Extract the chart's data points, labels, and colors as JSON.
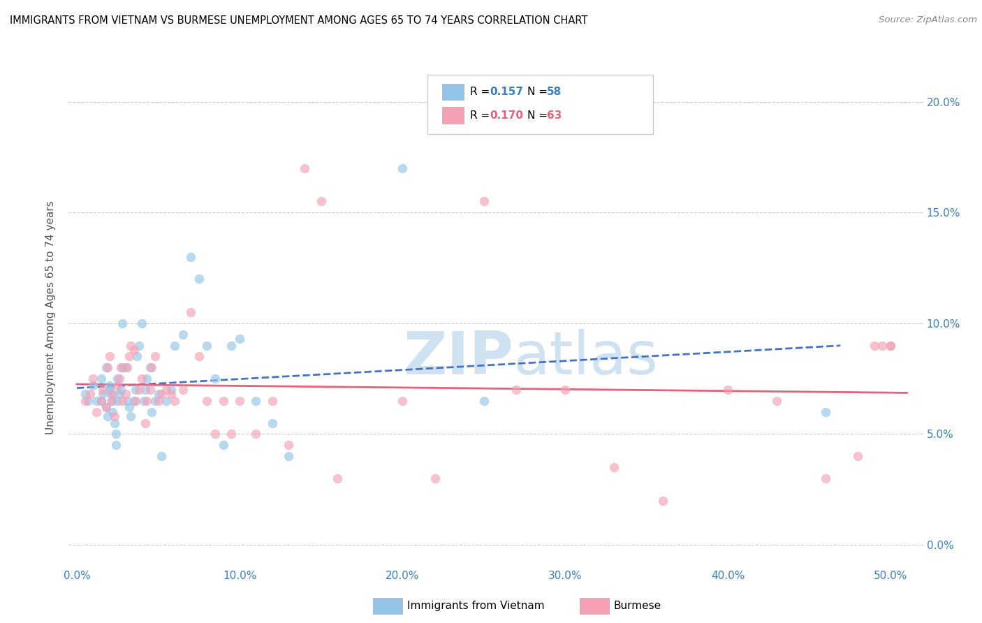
{
  "title": "IMMIGRANTS FROM VIETNAM VS BURMESE UNEMPLOYMENT AMONG AGES 65 TO 74 YEARS CORRELATION CHART",
  "source": "Source: ZipAtlas.com",
  "xlabel_vals": [
    0.0,
    0.1,
    0.2,
    0.3,
    0.4,
    0.5
  ],
  "ylabel_vals": [
    0.0,
    0.05,
    0.1,
    0.15,
    0.2
  ],
  "ylabel_label": "Unemployment Among Ages 65 to 74 years",
  "xlim": [
    -0.005,
    0.52
  ],
  "ylim": [
    -0.01,
    0.215
  ],
  "color_vietnam": "#92C5E8",
  "color_burmese": "#F5A0B5",
  "trendline_vietnam_color": "#4472C4",
  "trendline_burmese_color": "#E8607A",
  "watermark_zip": "ZIP",
  "watermark_atlas": "atlas",
  "watermark_color": "#D5E8F5",
  "scatter_alpha": 0.65,
  "scatter_size": 80,
  "vietnam_x": [
    0.005,
    0.007,
    0.01,
    0.012,
    0.015,
    0.015,
    0.016,
    0.018,
    0.018,
    0.019,
    0.02,
    0.02,
    0.021,
    0.022,
    0.022,
    0.023,
    0.024,
    0.024,
    0.025,
    0.025,
    0.026,
    0.027,
    0.028,
    0.028,
    0.03,
    0.031,
    0.032,
    0.033,
    0.035,
    0.036,
    0.037,
    0.038,
    0.04,
    0.041,
    0.042,
    0.043,
    0.045,
    0.046,
    0.048,
    0.05,
    0.052,
    0.055,
    0.058,
    0.06,
    0.065,
    0.07,
    0.075,
    0.08,
    0.085,
    0.09,
    0.095,
    0.1,
    0.11,
    0.12,
    0.13,
    0.2,
    0.25,
    0.46
  ],
  "vietnam_y": [
    0.068,
    0.065,
    0.072,
    0.065,
    0.075,
    0.065,
    0.068,
    0.08,
    0.062,
    0.058,
    0.07,
    0.072,
    0.068,
    0.065,
    0.06,
    0.055,
    0.05,
    0.045,
    0.075,
    0.065,
    0.068,
    0.07,
    0.08,
    0.1,
    0.08,
    0.065,
    0.062,
    0.058,
    0.065,
    0.07,
    0.085,
    0.09,
    0.1,
    0.065,
    0.07,
    0.075,
    0.08,
    0.06,
    0.065,
    0.068,
    0.04,
    0.065,
    0.07,
    0.09,
    0.095,
    0.13,
    0.12,
    0.09,
    0.075,
    0.045,
    0.09,
    0.093,
    0.065,
    0.055,
    0.04,
    0.17,
    0.065,
    0.06
  ],
  "burmese_x": [
    0.005,
    0.008,
    0.01,
    0.012,
    0.015,
    0.016,
    0.018,
    0.019,
    0.02,
    0.021,
    0.022,
    0.023,
    0.025,
    0.026,
    0.027,
    0.028,
    0.03,
    0.031,
    0.032,
    0.033,
    0.035,
    0.036,
    0.038,
    0.04,
    0.042,
    0.043,
    0.045,
    0.046,
    0.048,
    0.05,
    0.052,
    0.055,
    0.058,
    0.06,
    0.065,
    0.07,
    0.075,
    0.08,
    0.085,
    0.09,
    0.095,
    0.1,
    0.11,
    0.12,
    0.13,
    0.14,
    0.15,
    0.16,
    0.2,
    0.22,
    0.25,
    0.27,
    0.3,
    0.33,
    0.36,
    0.4,
    0.43,
    0.46,
    0.48,
    0.49,
    0.495,
    0.5,
    0.5
  ],
  "burmese_y": [
    0.065,
    0.068,
    0.075,
    0.06,
    0.065,
    0.07,
    0.062,
    0.08,
    0.085,
    0.065,
    0.068,
    0.058,
    0.072,
    0.075,
    0.08,
    0.065,
    0.068,
    0.08,
    0.085,
    0.09,
    0.088,
    0.065,
    0.07,
    0.075,
    0.055,
    0.065,
    0.07,
    0.08,
    0.085,
    0.065,
    0.068,
    0.07,
    0.068,
    0.065,
    0.07,
    0.105,
    0.085,
    0.065,
    0.05,
    0.065,
    0.05,
    0.065,
    0.05,
    0.065,
    0.045,
    0.17,
    0.155,
    0.03,
    0.065,
    0.03,
    0.155,
    0.07,
    0.07,
    0.035,
    0.02,
    0.07,
    0.065,
    0.03,
    0.04,
    0.09,
    0.09,
    0.09,
    0.09
  ]
}
